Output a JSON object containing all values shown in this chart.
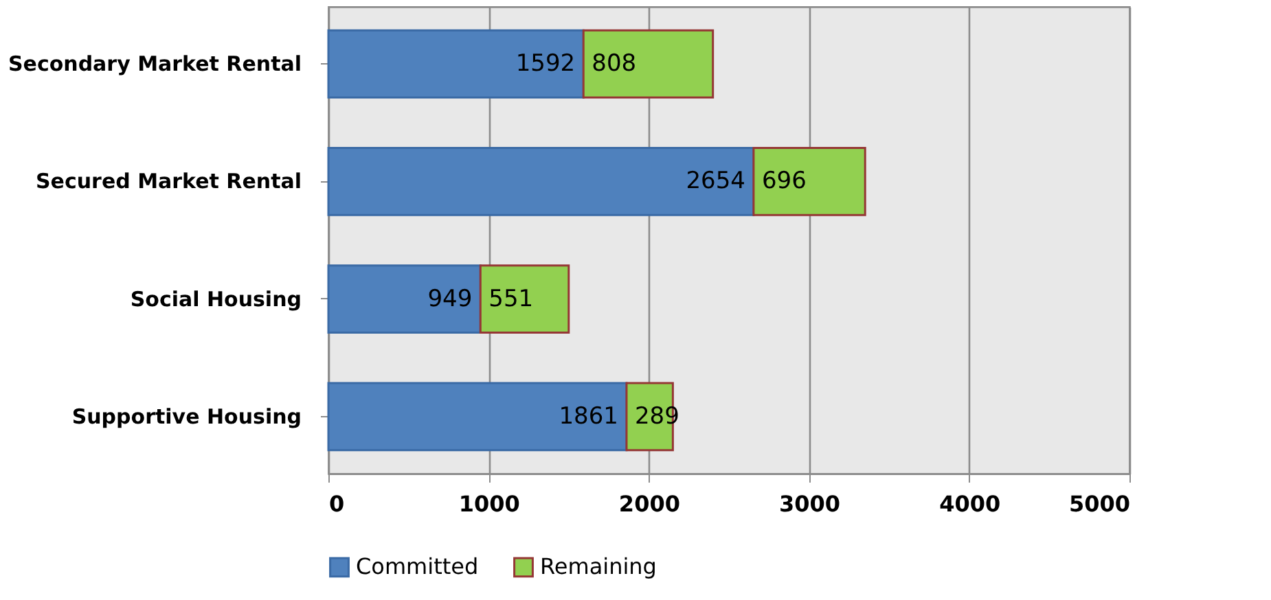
{
  "chart_data": {
    "type": "bar",
    "orientation": "horizontal",
    "stacked": true,
    "categories": [
      "Secondary Market Rental",
      "Secured Market Rental",
      "Social Housing",
      "Supportive Housing"
    ],
    "series": [
      {
        "name": "Committed",
        "color": "#4f81bd",
        "values": [
          1592,
          2654,
          949,
          1861
        ]
      },
      {
        "name": "Remaining",
        "color": "#92d050",
        "values": [
          808,
          696,
          551,
          289
        ]
      }
    ],
    "xlim": [
      0,
      5000
    ],
    "xticks": [
      0,
      1000,
      2000,
      3000,
      4000,
      5000
    ],
    "grid": "x",
    "legend": "bottom",
    "data_labels": true
  }
}
